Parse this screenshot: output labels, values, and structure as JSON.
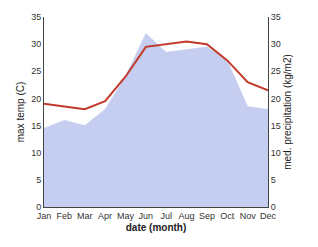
{
  "chart_data": {
    "type": "line",
    "xlabel": "date (month)",
    "ylabel": "max temp (C)",
    "y2label": "med. precipitation (kg/m2)",
    "categories": [
      "Jan",
      "Feb",
      "Mar",
      "Apr",
      "May",
      "Jun",
      "Jul",
      "Aug",
      "Sep",
      "Oct",
      "Nov",
      "Dec"
    ],
    "series": [
      {
        "type": "area",
        "axis": "y2",
        "color": "#c5cef0",
        "values": [
          14.5,
          16.0,
          15.0,
          18.0,
          24.0,
          32.0,
          28.5,
          29.0,
          29.5,
          27.0,
          18.5,
          18.0
        ]
      },
      {
        "type": "line",
        "color": "#c0392b",
        "values": [
          19.0,
          18.5,
          18.0,
          19.5,
          24.0,
          29.5,
          30.0,
          30.5,
          30.0,
          27.0,
          23.0,
          21.5
        ]
      }
    ],
    "ylim": [
      0,
      35
    ],
    "yticks": [
      0,
      5,
      10,
      15,
      20,
      25,
      30,
      35
    ],
    "y2lim": [
      0,
      35
    ],
    "y2ticks": [
      0,
      5,
      10,
      15,
      20,
      25,
      30,
      35
    ],
    "grid": false
  }
}
